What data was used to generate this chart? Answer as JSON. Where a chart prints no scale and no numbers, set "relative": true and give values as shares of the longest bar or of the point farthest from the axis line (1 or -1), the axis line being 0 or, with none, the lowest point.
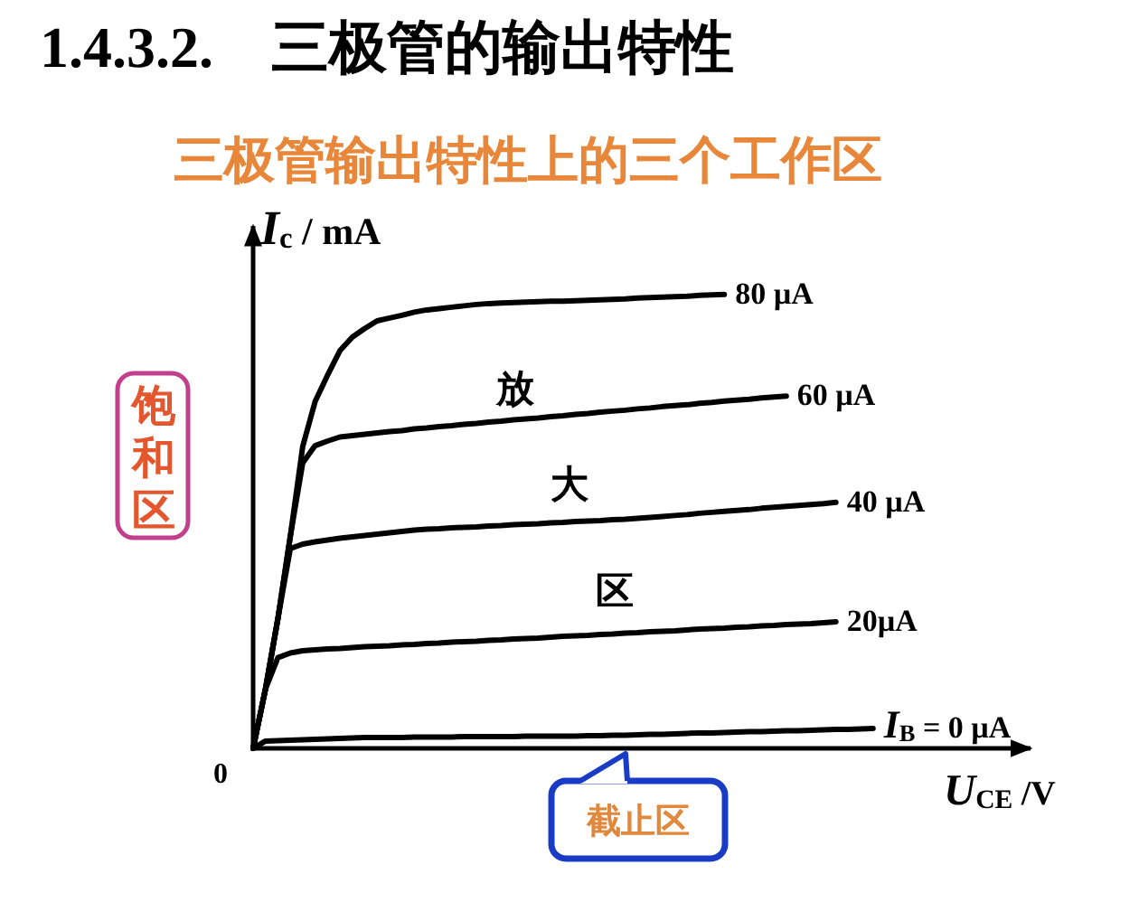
{
  "chart_data": {
    "type": "line",
    "relative": true,
    "title": "1.4.3.2.    三极管的输出特性",
    "subtitle": "三极管输出特性上的三个工作区",
    "xlabel": "U$_{CE}$ /V",
    "ylabel": "I$_{c}$ / mA",
    "marker": "none",
    "line_style": "solid",
    "categories": [
      null,
      null,
      null,
      null,
      null,
      null,
      null,
      null,
      null,
      null,
      null,
      null,
      null,
      null,
      null,
      null,
      null,
      null,
      null,
      null,
      null,
      null,
      null,
      null,
      null,
      null,
      null,
      null,
      null,
      null,
      null,
      null,
      null,
      null,
      null,
      null,
      null,
      null,
      null,
      null,
      null,
      null,
      null,
      null,
      null,
      null,
      null,
      null,
      null,
      null,
      null
    ],
    "series": [
      {
        "name": "80 µA",
        "color": "#000000",
        "values": [
          0,
          0.131,
          0.286,
          0.467,
          0.665,
          0.764,
          0.822,
          0.876,
          0.906,
          0.925,
          0.942,
          0.948,
          0.954,
          0.961,
          0.966,
          0.969,
          0.972,
          0.975,
          0.978,
          0.98,
          0.981,
          0.982,
          0.983,
          0.984,
          0.985,
          0.985,
          0.986,
          0.987,
          0.988,
          0.989,
          0.99,
          0.992,
          0.993,
          0.994,
          0.995,
          0.996,
          0.998,
          0.999,
          1,
          null,
          null,
          null,
          null,
          null,
          null,
          null,
          null,
          null,
          null,
          null,
          null
        ]
      },
      {
        "name": "60 µA",
        "color": "#000000",
        "values": [
          0,
          0.131,
          0.286,
          0.467,
          0.629,
          0.667,
          0.677,
          0.686,
          0.689,
          0.692,
          0.695,
          0.698,
          0.7,
          0.704,
          0.706,
          0.709,
          0.711,
          0.714,
          0.716,
          0.719,
          0.721,
          0.724,
          0.726,
          0.728,
          0.731,
          0.733,
          0.736,
          0.738,
          0.741,
          0.743,
          0.745,
          0.748,
          0.75,
          0.753,
          0.755,
          0.757,
          0.76,
          0.762,
          0.765,
          0.767,
          0.769,
          0.772,
          0.774,
          0.776,
          null,
          null,
          null,
          null,
          null,
          null,
          null
        ]
      },
      {
        "name": "40 µA",
        "color": "#000000",
        "values": [
          0,
          0.131,
          0.286,
          0.44,
          0.45,
          0.455,
          0.459,
          0.463,
          0.466,
          0.469,
          0.472,
          0.475,
          0.478,
          0.481,
          0.483,
          0.484,
          0.486,
          0.487,
          0.488,
          0.49,
          0.491,
          0.493,
          0.494,
          0.495,
          0.497,
          0.498,
          0.5,
          0.501,
          0.502,
          0.504,
          0.505,
          0.507,
          0.509,
          0.511,
          0.513,
          0.515,
          0.518,
          0.52,
          0.522,
          0.524,
          0.526,
          0.529,
          0.531,
          0.533,
          0.535,
          0.537,
          0.539,
          0.542,
          null,
          null,
          null
        ]
      },
      {
        "name": "20µA",
        "color": "#000000",
        "values": [
          0,
          0.131,
          0.2,
          0.21,
          0.215,
          0.217,
          0.219,
          0.22,
          0.222,
          0.224,
          0.225,
          0.226,
          0.228,
          0.229,
          0.231,
          0.232,
          0.234,
          0.235,
          0.236,
          0.238,
          0.239,
          0.241,
          0.242,
          0.243,
          0.245,
          0.247,
          0.248,
          0.249,
          0.251,
          0.252,
          0.254,
          0.255,
          0.257,
          0.258,
          0.259,
          0.261,
          0.263,
          0.264,
          0.265,
          0.267,
          0.268,
          0.27,
          0.271,
          0.273,
          0.274,
          0.275,
          0.277,
          0.279,
          null,
          null,
          null
        ]
      },
      {
        "name": "I$_{B}$ = 0 µA",
        "color": "#000000",
        "values": [
          0,
          0.016,
          0.017,
          0.018,
          0.019,
          0.02,
          0.021,
          0.022,
          0.023,
          0.024,
          0.024,
          0.024,
          0.024,
          0.025,
          0.025,
          0.025,
          0.025,
          0.026,
          0.026,
          0.026,
          0.026,
          0.026,
          0.027,
          0.027,
          0.027,
          0.027,
          0.027,
          0.028,
          0.028,
          0.029,
          0.029,
          0.03,
          0.031,
          0.031,
          0.032,
          0.033,
          0.034,
          0.034,
          0.035,
          0.036,
          0.037,
          0.037,
          0.038,
          0.039,
          0.039,
          0.04,
          0.041,
          0.042,
          0.042,
          0.043,
          0.044
        ]
      }
    ],
    "annotations": [
      "0",
      "放",
      "大",
      "区",
      "饱和区",
      "截止区"
    ]
  }
}
